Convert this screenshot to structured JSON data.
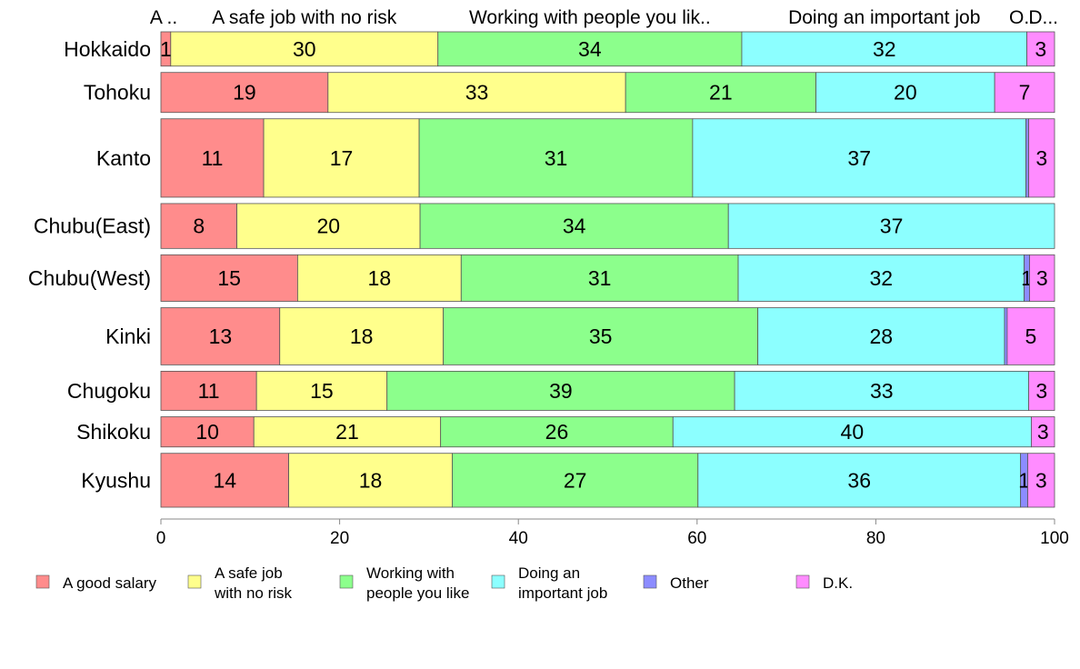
{
  "chart_data": {
    "type": "bar",
    "orientation": "horizontal",
    "stacked": true,
    "xlim": [
      0,
      100
    ],
    "x_ticks": [
      0,
      20,
      40,
      60,
      80,
      100
    ],
    "grid": false,
    "legend_position": "bottom",
    "top_labels": [
      "A ..",
      "A safe job with no risk",
      "Working with people you lik..",
      "Doing an important job",
      "O..",
      "D..."
    ],
    "categories": [
      "Hokkaido",
      "Tohoku",
      "Kanto",
      "Chubu(East)",
      "Chubu(West)",
      "Kinki",
      "Chugoku",
      "Shikoku",
      "Kyushu"
    ],
    "row_weights": [
      0.42,
      0.49,
      0.96,
      0.55,
      0.57,
      0.7,
      0.48,
      0.37,
      0.66
    ],
    "series": [
      {
        "name": "A good salary",
        "legend_lines": [
          "A good salary"
        ],
        "color": "#ff8c8c",
        "values": [
          1.1,
          18.7,
          11.5,
          8.5,
          15.3,
          13.3,
          10.7,
          10.4,
          14.3
        ],
        "labels": [
          "1",
          "19",
          "11",
          "8",
          "15",
          "13",
          "11",
          "10",
          "14"
        ]
      },
      {
        "name": "A safe job with no risk",
        "legend_lines": [
          "A safe job",
          "with no risk"
        ],
        "color": "#ffff8c",
        "values": [
          29.9,
          33.3,
          17.4,
          20.5,
          18.3,
          18.3,
          14.6,
          20.9,
          18.3
        ],
        "labels": [
          "30",
          "33",
          "17",
          "20",
          "18",
          "18",
          "15",
          "21",
          "18"
        ]
      },
      {
        "name": "Working with people you like",
        "legend_lines": [
          "Working with",
          "people you like"
        ],
        "color": "#8cff8c",
        "values": [
          34.0,
          21.3,
          30.6,
          34.5,
          31.0,
          35.2,
          38.9,
          26.0,
          27.5
        ],
        "labels": [
          "34",
          "21",
          "31",
          "34",
          "31",
          "35",
          "39",
          "26",
          "27"
        ]
      },
      {
        "name": "Doing an important job",
        "legend_lines": [
          "Doing an",
          "important job"
        ],
        "color": "#8cffff",
        "values": [
          31.9,
          20.0,
          37.3,
          36.5,
          32.0,
          27.6,
          32.9,
          40.1,
          36.1
        ],
        "labels": [
          "32",
          "20",
          "37",
          "37",
          "32",
          "28",
          "33",
          "40",
          "36"
        ]
      },
      {
        "name": "Other",
        "legend_lines": [
          "Other"
        ],
        "color": "#8c8cff",
        "values": [
          0,
          0,
          0.3,
          0,
          0.6,
          0.3,
          0,
          0,
          0.8
        ],
        "labels": [
          "",
          "",
          "",
          "",
          "1",
          "",
          "",
          "",
          "1"
        ]
      },
      {
        "name": "D.K.",
        "legend_lines": [
          "D.K."
        ],
        "color": "#ff8cff",
        "values": [
          3.1,
          6.7,
          2.9,
          0,
          2.8,
          5.3,
          2.9,
          2.6,
          3.0
        ],
        "labels": [
          "3",
          "7",
          "3",
          "",
          "3",
          "5",
          "3",
          "3",
          "3"
        ]
      }
    ]
  }
}
